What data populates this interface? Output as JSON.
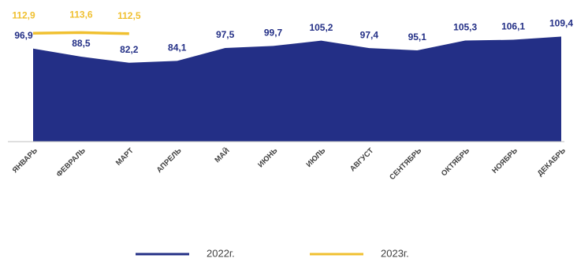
{
  "chart_data": {
    "type": "area",
    "categories": [
      "ЯНВАРЬ",
      "ФЕВРАЛЬ",
      "МАРТ",
      "АПРЕЛЬ",
      "МАЙ",
      "ИЮНЬ",
      "ИЮЛЬ",
      "АВГУСТ",
      "СЕНТЯБРЬ",
      "ОКТЯБРЬ",
      "НОЯБРЬ",
      "ДЕКАБРЬ"
    ],
    "series": [
      {
        "name": "2022г.",
        "type": "area",
        "color": "#232f86",
        "values": [
          96.9,
          88.5,
          82.2,
          84.1,
          97.5,
          99.7,
          105.2,
          97.4,
          95.1,
          105.3,
          106.1,
          109.4
        ],
        "value_labels": [
          "96,9",
          "88,5",
          "82,2",
          "84,1",
          "97,5",
          "99,7",
          "105,2",
          "97,4",
          "95,1",
          "105,3",
          "106,1",
          "109,4"
        ]
      },
      {
        "name": "2023г.",
        "type": "line",
        "color": "#f0c030",
        "values": [
          112.9,
          113.6,
          112.5,
          null,
          null,
          null,
          null,
          null,
          null,
          null,
          null,
          null
        ],
        "value_labels": [
          "112,9",
          "113,6",
          "112,5",
          null,
          null,
          null,
          null,
          null,
          null,
          null,
          null,
          null
        ]
      }
    ],
    "ylim": [
      0,
      120
    ],
    "legend": "bottom"
  }
}
